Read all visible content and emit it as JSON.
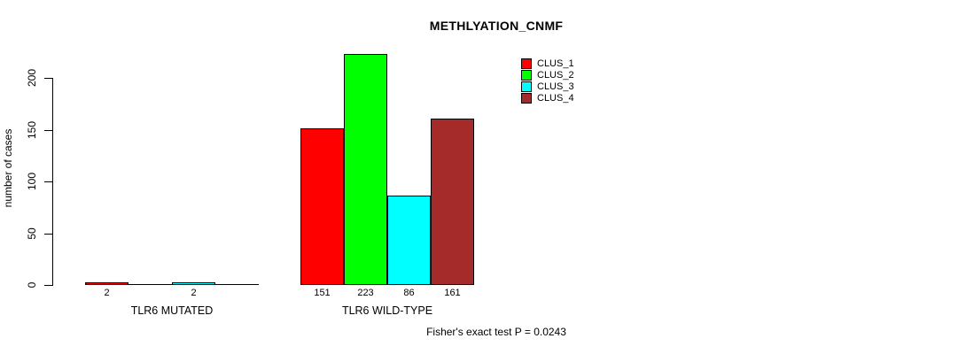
{
  "chart_data": {
    "type": "bar",
    "title": "METHLYATION_CNMF",
    "xlabel": "",
    "ylabel": "number of cases",
    "groups": [
      "TLR6 MUTATED",
      "TLR6 WILD-TYPE"
    ],
    "series": [
      {
        "name": "CLUS_1",
        "color": "#ff0000",
        "values": [
          2,
          151
        ]
      },
      {
        "name": "CLUS_2",
        "color": "#00ff00",
        "values": [
          0,
          223
        ]
      },
      {
        "name": "CLUS_3",
        "color": "#00ffff",
        "values": [
          2,
          86
        ]
      },
      {
        "name": "CLUS_4",
        "color": "#a52a2a",
        "values": [
          0,
          161
        ]
      }
    ],
    "value_labels": [
      [
        "2",
        "",
        "2",
        ""
      ],
      [
        "151",
        "223",
        "86",
        "161"
      ]
    ],
    "yticks": [
      0,
      50,
      100,
      150,
      200
    ],
    "ylim": [
      0,
      234
    ],
    "grid": false,
    "legend_position": "top-right",
    "legend_entries": [
      "CLUS_1",
      "CLUS_2",
      "CLUS_3",
      "CLUS_4"
    ],
    "annotation": "Fisher's exact test P = 0.0243",
    "axis_color": "#000000",
    "background_color": "#ffffff"
  }
}
